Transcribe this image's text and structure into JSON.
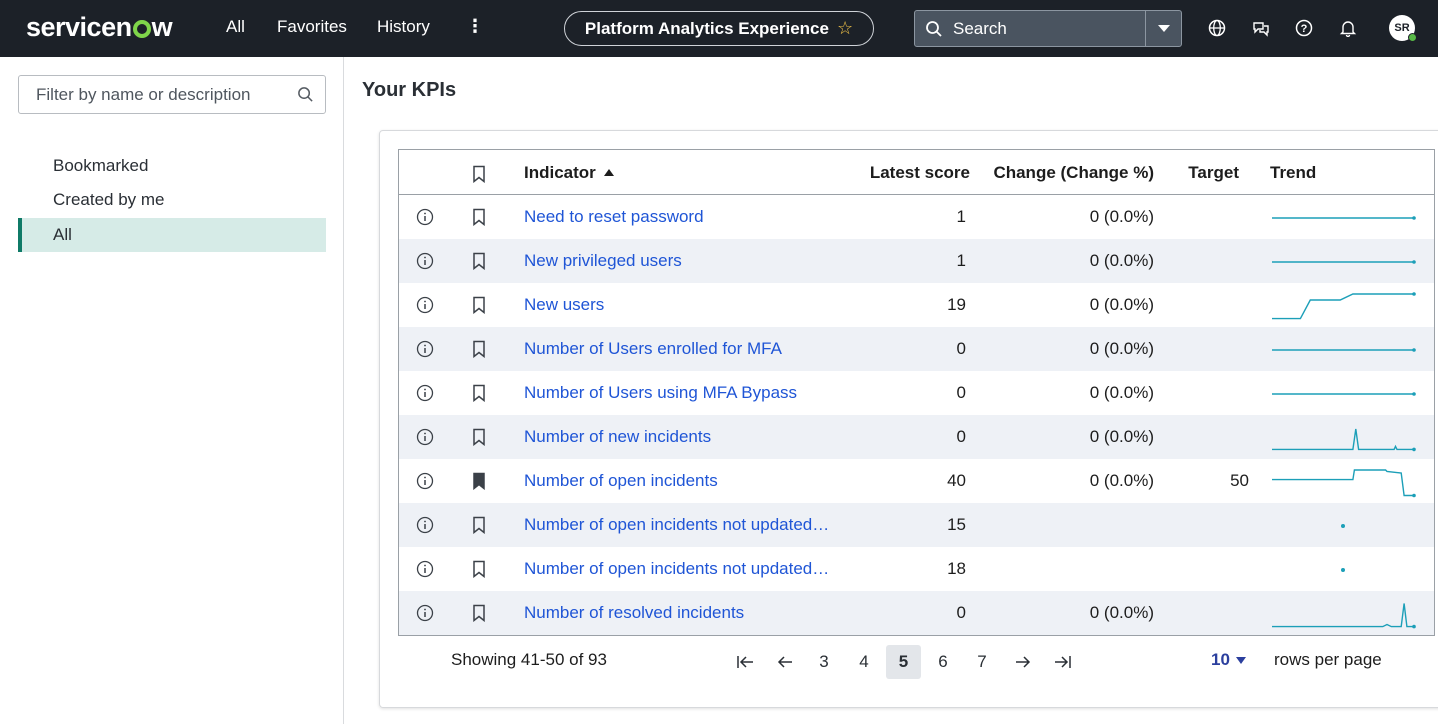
{
  "header": {
    "logo": "servicenow",
    "logo_parts": [
      "servicen",
      "w"
    ],
    "nav": [
      "All",
      "Favorites",
      "History"
    ],
    "workspace": "Platform Analytics Experience",
    "search_label": "Search",
    "user_initials": "SR"
  },
  "sidebar": {
    "filter_placeholder": "Filter by name or description",
    "items": [
      {
        "label": "Bookmarked",
        "active": false
      },
      {
        "label": "Created by me",
        "active": false
      },
      {
        "label": "All",
        "active": true
      }
    ]
  },
  "main": {
    "title": "Your KPIs",
    "columns": {
      "indicator": "Indicator",
      "latest_score": "Latest score",
      "change": "Change (Change %)",
      "target": "Target",
      "trend": "Trend"
    },
    "rows": [
      {
        "indicator": "Need to reset password",
        "score": "1",
        "change": "0 (0.0%)",
        "target": "",
        "bookmarked": false,
        "trend": [
          1,
          1,
          1,
          1,
          1,
          1,
          1,
          1,
          1,
          1,
          1,
          1,
          1,
          1,
          1,
          1,
          1,
          1,
          1,
          1
        ]
      },
      {
        "indicator": "New privileged users",
        "score": "1",
        "change": "0 (0.0%)",
        "target": "",
        "bookmarked": false,
        "trend": [
          1,
          1,
          1,
          1,
          1,
          1,
          1,
          1,
          1,
          1,
          1,
          1,
          1,
          1,
          1,
          1,
          1,
          1,
          1,
          1
        ]
      },
      {
        "indicator": "New users",
        "score": "19",
        "change": "0 (0.0%)",
        "target": "",
        "bookmarked": false,
        "trend": [
          0,
          0,
          0,
          0,
          0,
          14,
          14,
          14,
          14,
          14,
          17,
          19,
          19,
          19,
          19,
          19,
          19,
          19,
          19,
          19
        ]
      },
      {
        "indicator": "Number of Users enrolled for MFA",
        "score": "0",
        "change": "0 (0.0%)",
        "target": "",
        "bookmarked": false,
        "trend": [
          0,
          0,
          0,
          0,
          0,
          0,
          0,
          0,
          0,
          0,
          0,
          0,
          0,
          0,
          0,
          0,
          0,
          0,
          0,
          0
        ]
      },
      {
        "indicator": "Number of Users using MFA Bypass",
        "score": "0",
        "change": "0 (0.0%)",
        "target": "",
        "bookmarked": false,
        "trend": [
          0,
          0,
          0,
          0,
          0,
          0,
          0,
          0,
          0,
          0,
          0,
          0,
          0,
          0,
          0,
          0,
          0,
          0,
          0,
          0
        ]
      },
      {
        "indicator": "Number of new incidents",
        "score": "0",
        "change": "0 (0.0%)",
        "target": "",
        "bookmarked": false,
        "trend": [
          0,
          0,
          0,
          0,
          0,
          0,
          0,
          0,
          0,
          0,
          0,
          0,
          0,
          0,
          0,
          0,
          0,
          0,
          0,
          0,
          0,
          0,
          0,
          0,
          0,
          0,
          0,
          0,
          0,
          0,
          0,
          0,
          0,
          0,
          0,
          0,
          0,
          0,
          0,
          0,
          0,
          0,
          0,
          0,
          0,
          0,
          0,
          0,
          0,
          0,
          0,
          0,
          0,
          0,
          0,
          0,
          0,
          0,
          0,
          0,
          0,
          0,
          0,
          0,
          0,
          0,
          0,
          0,
          0,
          0,
          0,
          0,
          0,
          0,
          0,
          0,
          0,
          0,
          0,
          0,
          0,
          0,
          0,
          0,
          0,
          0,
          0,
          0,
          0,
          0,
          0,
          0,
          0,
          0,
          0,
          0,
          0,
          0,
          0,
          0,
          0,
          0,
          0,
          0,
          0,
          0,
          0,
          0,
          0,
          0,
          0,
          0,
          0,
          0,
          0,
          0,
          0,
          0,
          0,
          0,
          0,
          0,
          0,
          0,
          0,
          0,
          0,
          0,
          0,
          0,
          0,
          0,
          0,
          0,
          0,
          0,
          0,
          0,
          0,
          0,
          0,
          0,
          0,
          0,
          0,
          0,
          0,
          0,
          0,
          0,
          0,
          0,
          0,
          0,
          0,
          0,
          0,
          0,
          0,
          0,
          0,
          0,
          0,
          0,
          0,
          0,
          0,
          0,
          0,
          0,
          0,
          0,
          0,
          0,
          0,
          0,
          0,
          0,
          0,
          0,
          0,
          0,
          0,
          0,
          0,
          0,
          0,
          0,
          0,
          0,
          0,
          0,
          0,
          0,
          0,
          0,
          0,
          0,
          0,
          0
        ]
      },
      {
        "indicator": "Number of open incidents",
        "score": "40",
        "change": "0 (0.0%)",
        "target": "50",
        "bookmarked": true,
        "trend": []
      },
      {
        "indicator": "Number of open incidents not updated…",
        "score": "15",
        "change": "",
        "target": "",
        "bookmarked": false,
        "trend": []
      },
      {
        "indicator": "Number of open incidents not updated…",
        "score": "18",
        "change": "",
        "target": "",
        "bookmarked": false,
        "trend": []
      },
      {
        "indicator": "Number of resolved incidents",
        "score": "0",
        "change": "0 (0.0%)",
        "target": "",
        "bookmarked": false,
        "trend": []
      }
    ]
  },
  "pagination": {
    "showing": "Showing 41-50 of 93",
    "pages": [
      "3",
      "4",
      "5",
      "6",
      "7"
    ],
    "current": "5",
    "rows_per_page_value": "10",
    "rows_per_page_label": "rows per page"
  },
  "colors": {
    "topbar": "#1c2128",
    "link": "#1f55d6",
    "trend": "#1c9fb8",
    "active_bg": "#d6ebe7",
    "active_bar": "#0f7a67"
  }
}
